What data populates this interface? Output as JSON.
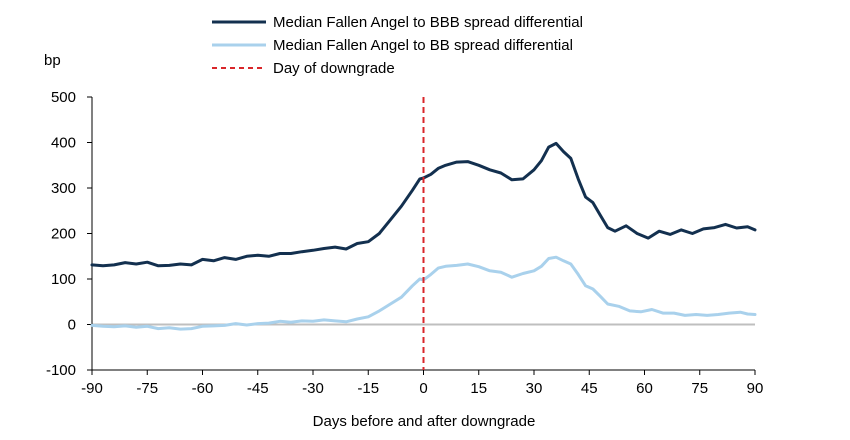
{
  "chart_data": {
    "type": "line",
    "title": "",
    "xlabel": "Days before and after downgrade",
    "ylabel": "bp",
    "xlim": [
      -90,
      90
    ],
    "ylim": [
      -100,
      500
    ],
    "x_ticks": [
      -90,
      -75,
      -60,
      -45,
      -30,
      -15,
      0,
      15,
      30,
      45,
      60,
      75,
      90
    ],
    "y_ticks": [
      -100,
      0,
      100,
      200,
      300,
      400,
      500
    ],
    "grid": false,
    "legend_position": "top-center",
    "zero_line": {
      "value": 0,
      "color": "#bfbfbf"
    },
    "vline": {
      "x": 0,
      "name": "Day of downgrade",
      "color": "#d9262a",
      "style": "dashed"
    },
    "series": [
      {
        "name": "Median Fallen Angel to BBB spread differential",
        "color": "#13304f",
        "points": [
          [
            -90,
            131
          ],
          [
            -87,
            129
          ],
          [
            -84,
            131
          ],
          [
            -81,
            136
          ],
          [
            -78,
            133
          ],
          [
            -75,
            137
          ],
          [
            -72,
            129
          ],
          [
            -69,
            130
          ],
          [
            -66,
            133
          ],
          [
            -63,
            131
          ],
          [
            -60,
            143
          ],
          [
            -57,
            140
          ],
          [
            -54,
            147
          ],
          [
            -51,
            143
          ],
          [
            -48,
            150
          ],
          [
            -45,
            152
          ],
          [
            -42,
            150
          ],
          [
            -39,
            156
          ],
          [
            -36,
            156
          ],
          [
            -33,
            160
          ],
          [
            -30,
            163
          ],
          [
            -27,
            167
          ],
          [
            -24,
            170
          ],
          [
            -21,
            166
          ],
          [
            -18,
            178
          ],
          [
            -15,
            182
          ],
          [
            -12,
            200
          ],
          [
            -9,
            230
          ],
          [
            -6,
            260
          ],
          [
            -3,
            295
          ],
          [
            -1,
            320
          ],
          [
            0,
            322
          ],
          [
            2,
            330
          ],
          [
            4,
            343
          ],
          [
            6,
            350
          ],
          [
            9,
            357
          ],
          [
            12,
            358
          ],
          [
            15,
            350
          ],
          [
            18,
            340
          ],
          [
            21,
            333
          ],
          [
            24,
            318
          ],
          [
            27,
            320
          ],
          [
            30,
            340
          ],
          [
            32,
            360
          ],
          [
            34,
            390
          ],
          [
            36,
            398
          ],
          [
            38,
            380
          ],
          [
            40,
            365
          ],
          [
            42,
            320
          ],
          [
            44,
            280
          ],
          [
            46,
            268
          ],
          [
            48,
            240
          ],
          [
            50,
            213
          ],
          [
            52,
            205
          ],
          [
            55,
            217
          ],
          [
            58,
            200
          ],
          [
            61,
            190
          ],
          [
            64,
            205
          ],
          [
            67,
            198
          ],
          [
            70,
            208
          ],
          [
            73,
            200
          ],
          [
            76,
            210
          ],
          [
            79,
            213
          ],
          [
            82,
            220
          ],
          [
            85,
            212
          ],
          [
            88,
            215
          ],
          [
            90,
            208
          ]
        ]
      },
      {
        "name": "Median Fallen Angel to BB spread differential",
        "color": "#a9d1ec",
        "points": [
          [
            -90,
            -2
          ],
          [
            -87,
            -4
          ],
          [
            -84,
            -5
          ],
          [
            -81,
            -3
          ],
          [
            -78,
            -6
          ],
          [
            -75,
            -4
          ],
          [
            -72,
            -9
          ],
          [
            -69,
            -7
          ],
          [
            -66,
            -10
          ],
          [
            -63,
            -9
          ],
          [
            -60,
            -4
          ],
          [
            -57,
            -3
          ],
          [
            -54,
            -2
          ],
          [
            -51,
            2
          ],
          [
            -48,
            -1
          ],
          [
            -45,
            2
          ],
          [
            -42,
            3
          ],
          [
            -39,
            7
          ],
          [
            -36,
            5
          ],
          [
            -33,
            8
          ],
          [
            -30,
            7
          ],
          [
            -27,
            10
          ],
          [
            -24,
            8
          ],
          [
            -21,
            6
          ],
          [
            -18,
            12
          ],
          [
            -15,
            17
          ],
          [
            -12,
            30
          ],
          [
            -9,
            45
          ],
          [
            -6,
            60
          ],
          [
            -3,
            85
          ],
          [
            -1,
            100
          ],
          [
            0,
            98
          ],
          [
            2,
            110
          ],
          [
            4,
            124
          ],
          [
            6,
            128
          ],
          [
            9,
            130
          ],
          [
            12,
            133
          ],
          [
            15,
            127
          ],
          [
            18,
            118
          ],
          [
            21,
            115
          ],
          [
            24,
            104
          ],
          [
            27,
            112
          ],
          [
            30,
            118
          ],
          [
            32,
            128
          ],
          [
            34,
            145
          ],
          [
            36,
            148
          ],
          [
            38,
            140
          ],
          [
            40,
            133
          ],
          [
            42,
            110
          ],
          [
            44,
            85
          ],
          [
            46,
            78
          ],
          [
            48,
            62
          ],
          [
            50,
            45
          ],
          [
            53,
            40
          ],
          [
            56,
            30
          ],
          [
            59,
            28
          ],
          [
            62,
            33
          ],
          [
            65,
            25
          ],
          [
            68,
            25
          ],
          [
            71,
            20
          ],
          [
            74,
            22
          ],
          [
            77,
            20
          ],
          [
            80,
            22
          ],
          [
            83,
            25
          ],
          [
            86,
            27
          ],
          [
            88,
            23
          ],
          [
            90,
            22
          ]
        ]
      }
    ]
  }
}
